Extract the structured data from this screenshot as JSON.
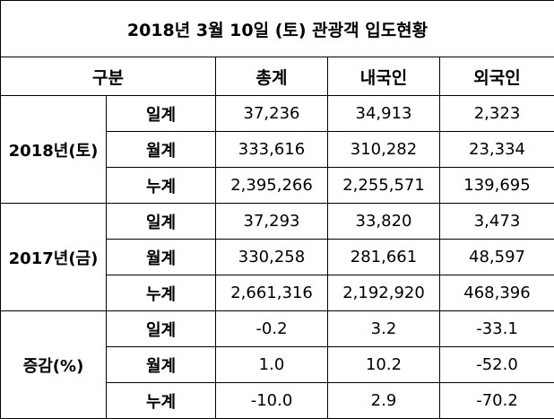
{
  "title": "2018년 3월 10일 (토) 관광객 입도현황",
  "header": [
    "구분",
    "총계",
    "내국인",
    "외국인"
  ],
  "groups": [
    {
      "label": "2018년(토)",
      "rows": [
        {
          "label": "일계",
          "values": [
            "37,236",
            "34,913",
            "2,323"
          ]
        },
        {
          "label": "월계",
          "values": [
            "333,616",
            "310,282",
            "23,334"
          ]
        },
        {
          "label": "누계",
          "values": [
            "2,395,266",
            "2,255,571",
            "139,695"
          ]
        }
      ]
    },
    {
      "label": "2017년(금)",
      "rows": [
        {
          "label": "일계",
          "values": [
            "37,293",
            "33,820",
            "3,473"
          ]
        },
        {
          "label": "월계",
          "values": [
            "330,258",
            "281,661",
            "48,597"
          ]
        },
        {
          "label": "누계",
          "values": [
            "2,661,316",
            "2,192,920",
            "468,396"
          ]
        }
      ]
    },
    {
      "label": "증감(%)",
      "rows": [
        {
          "label": "일계",
          "values": [
            "-0.2",
            "3.2",
            "-33.1"
          ]
        },
        {
          "label": "월계",
          "values": [
            "1.0",
            "10.2",
            "-52.0"
          ]
        },
        {
          "label": "누계",
          "values": [
            "-10.0",
            "2.9",
            "-70.2"
          ]
        }
      ]
    }
  ]
}
